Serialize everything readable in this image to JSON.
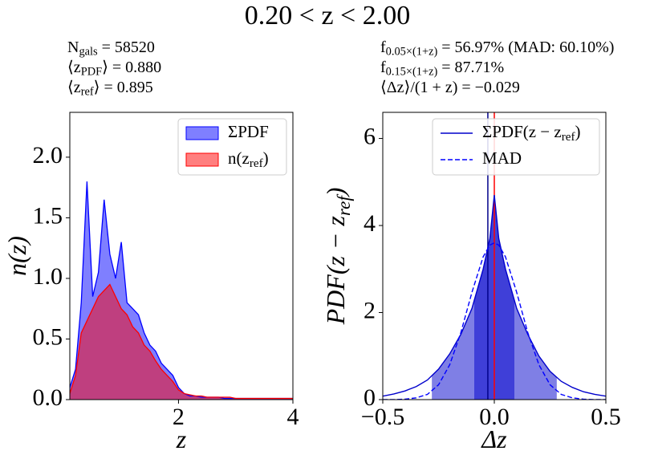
{
  "title": "0.20 < z < 2.00",
  "chart_data": [
    {
      "type": "area",
      "annotations": [
        [
          "N",
          "gals",
          " = 58520"
        ],
        [
          "⟨z",
          "PDF",
          "⟩ = 0.880"
        ],
        [
          "⟨z",
          "ref",
          "⟩ = 0.895"
        ]
      ],
      "xlabel": [
        "z"
      ],
      "ylabel": [
        "n(z)"
      ],
      "xlim": [
        0.1,
        4
      ],
      "ylim": [
        0,
        2.37
      ],
      "xticks": [
        2,
        4
      ],
      "yticks": [
        {
          "value": 0,
          "label": "0.0"
        },
        {
          "value": 0.5,
          "label": "0.5"
        },
        {
          "value": 1,
          "label": "1.0"
        },
        {
          "value": 1.5,
          "label": "1.5"
        },
        {
          "value": 2,
          "label": "2.0"
        }
      ],
      "legend": "upper right",
      "x": [
        0.1,
        0.2,
        0.3,
        0.4,
        0.5,
        0.6,
        0.7,
        0.8,
        0.9,
        1.0,
        1.1,
        1.2,
        1.3,
        1.4,
        1.5,
        1.6,
        1.7,
        1.8,
        1.9,
        2.0,
        2.1,
        2.2,
        2.3,
        2.4,
        2.5,
        2.6,
        2.7,
        2.8,
        2.9,
        3.0,
        3.1,
        3.2,
        3.3,
        3.4,
        3.5,
        3.6,
        3.7,
        3.8,
        3.9,
        4.0
      ],
      "series": [
        {
          "name": [
            "ΣPDF"
          ],
          "color": "#0000ff",
          "values": [
            0.1,
            0.25,
            0.8,
            1.8,
            0.85,
            1.05,
            1.65,
            1.2,
            1.0,
            1.3,
            0.8,
            0.75,
            0.7,
            0.55,
            0.45,
            0.4,
            0.3,
            0.25,
            0.2,
            0.1,
            0.05,
            0.03,
            0.03,
            0.02,
            0.02,
            0.02,
            0.02,
            0.01,
            0.01,
            0.01,
            0.01,
            0.01,
            0.01,
            0.01,
            0.01,
            0.01,
            0.01,
            0.01,
            0.01,
            0.01
          ]
        },
        {
          "name": [
            "n(z",
            "ref",
            ")"
          ],
          "color": "#ff0000",
          "values": [
            0.05,
            0.2,
            0.55,
            0.65,
            0.75,
            0.85,
            0.9,
            0.95,
            0.85,
            0.75,
            0.7,
            0.6,
            0.55,
            0.45,
            0.4,
            0.32,
            0.25,
            0.2,
            0.15,
            0.08,
            0.05,
            0.04,
            0.03,
            0.03,
            0.02,
            0.02,
            0.02,
            0.02,
            0.02,
            0.01,
            0.01,
            0.01,
            0.01,
            0.01,
            0.01,
            0.01,
            0.01,
            0.01,
            0.01,
            0.01
          ]
        }
      ]
    },
    {
      "type": "line",
      "annotations": [
        [
          "f",
          "0.05×(1+z)",
          " = 56.97% (MAD: 60.10%)"
        ],
        [
          "f",
          "0.15×(1+z)",
          " = 87.71%"
        ],
        [
          "⟨Δz⟩/(1 + z) = −0.029"
        ]
      ],
      "xlabel": [
        "Δz"
      ],
      "ylabel": [
        "PDF(z − z",
        "ref",
        ")"
      ],
      "xlim": [
        -0.5,
        0.5
      ],
      "ylim": [
        0,
        6.6
      ],
      "xticks": [
        {
          "value": -0.5,
          "label": "−0.5"
        },
        {
          "value": 0,
          "label": "0.0"
        },
        {
          "value": 0.5,
          "label": "0.5"
        }
      ],
      "yticks": [
        0,
        2,
        4,
        6
      ],
      "legend": "upper right",
      "x": [
        -0.5,
        -0.45,
        -0.4,
        -0.35,
        -0.3,
        -0.25,
        -0.2,
        -0.15,
        -0.1,
        -0.05,
        -0.02,
        0,
        0.02,
        0.05,
        0.1,
        0.15,
        0.2,
        0.25,
        0.3,
        0.35,
        0.4,
        0.45,
        0.5
      ],
      "shade_ranges": [
        [
          -0.28,
          0.28
        ],
        [
          -0.09,
          0.09
        ]
      ],
      "vlines": [
        {
          "x": -0.029,
          "color": "#00008b"
        },
        {
          "x": 0,
          "color": "#ff0000"
        }
      ],
      "series": [
        {
          "name": [
            "ΣPDF(z − z",
            "ref",
            ")"
          ],
          "color": "#0000cc",
          "dash": false,
          "values": [
            0.08,
            0.13,
            0.2,
            0.3,
            0.45,
            0.7,
            1.05,
            1.5,
            2.1,
            3.0,
            3.7,
            4.7,
            3.7,
            3.0,
            2.1,
            1.5,
            1.0,
            0.65,
            0.42,
            0.28,
            0.18,
            0.12,
            0.08
          ]
        },
        {
          "name": [
            "MAD"
          ],
          "color": "#0000ff",
          "dash": true,
          "values": [
            0,
            0,
            0.01,
            0.04,
            0.12,
            0.34,
            0.8,
            1.54,
            2.47,
            3.28,
            3.55,
            3.6,
            3.55,
            3.28,
            2.47,
            1.54,
            0.8,
            0.34,
            0.12,
            0.04,
            0.01,
            0,
            0
          ]
        }
      ]
    }
  ]
}
